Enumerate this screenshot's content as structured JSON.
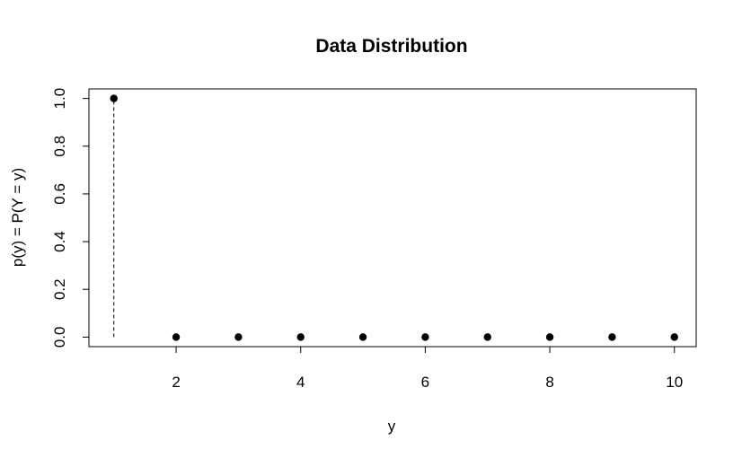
{
  "chart_data": {
    "type": "scatter",
    "title": "Data Distribution",
    "xlabel": "y",
    "ylabel": "p(y) = P(Y = y)",
    "x": [
      1,
      2,
      3,
      4,
      5,
      6,
      7,
      8,
      9,
      10
    ],
    "y": [
      1.0,
      0.0,
      0.0,
      0.0,
      0.0,
      0.0,
      0.0,
      0.0,
      0.0,
      0.0
    ],
    "xlim": [
      0.6,
      10.35
    ],
    "ylim": [
      -0.04,
      1.04
    ],
    "x_ticks": [
      "2",
      "4",
      "6",
      "8",
      "10"
    ],
    "y_ticks": [
      "0.0",
      "0.2",
      "0.4",
      "0.6",
      "0.8",
      "1.0"
    ],
    "drop_lines": "dashed vertical line from each point to y = 0",
    "grid": false,
    "colors": {
      "points": "#000000",
      "axes": "#000000"
    }
  }
}
